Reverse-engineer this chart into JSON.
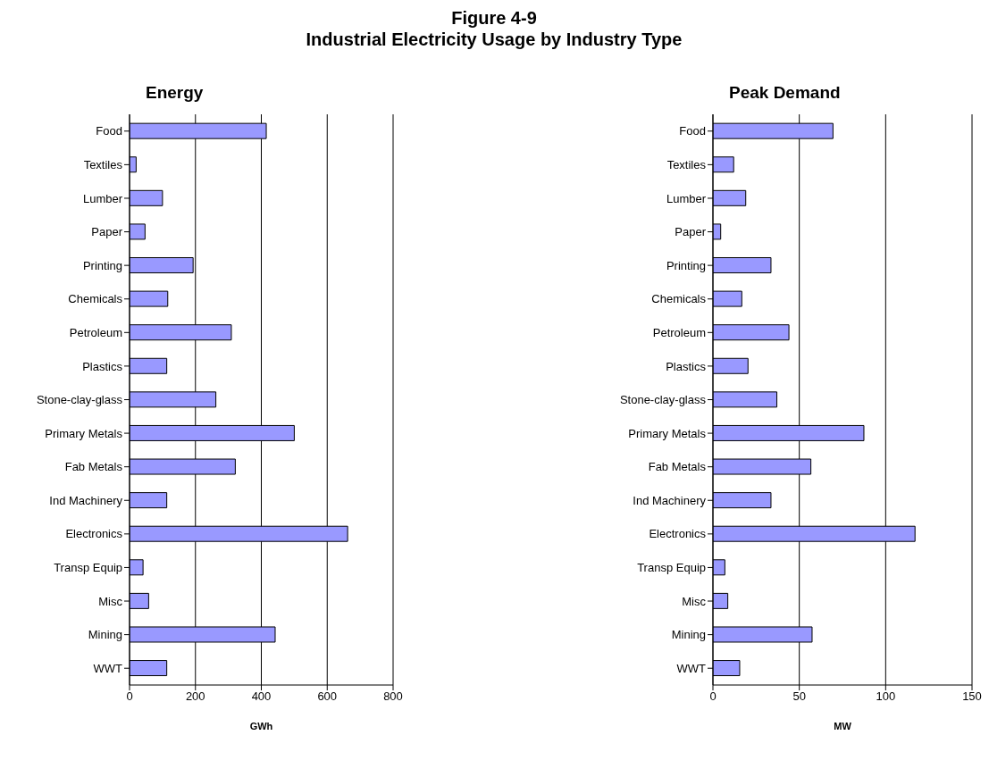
{
  "chart_data": [
    {
      "type": "bar",
      "orientation": "horizontal",
      "title": "Energy",
      "xlabel": "GWh",
      "annotations": [
        "Figure 4-9",
        "Industrial Electricity Usage by Industry Type"
      ],
      "categories": [
        "Food",
        "Textiles",
        "Lumber",
        "Paper",
        "Printing",
        "Chemicals",
        "Petroleum",
        "Plastics",
        "Stone-clay-glass",
        "Primary Metals",
        "Fab Metals",
        "Ind Machinery",
        "Electronics",
        "Transp Equip",
        "Misc",
        "Mining",
        "WWT"
      ],
      "values": [
        415,
        20,
        100,
        47,
        193,
        116,
        309,
        113,
        262,
        500,
        321,
        113,
        662,
        41,
        58,
        442,
        113
      ],
      "color": "#9999ff",
      "xlim": [
        0,
        800
      ],
      "xticks": [
        0,
        200,
        400,
        600,
        800
      ],
      "grid": "x"
    },
    {
      "type": "bar",
      "orientation": "horizontal",
      "title": "Peak Demand",
      "xlabel": "MW",
      "categories": [
        "Food",
        "Textiles",
        "Lumber",
        "Paper",
        "Printing",
        "Chemicals",
        "Petroleum",
        "Plastics",
        "Stone-clay-glass",
        "Primary Metals",
        "Fab Metals",
        "Ind Machinery",
        "Electronics",
        "Transp Equip",
        "Misc",
        "Mining",
        "WWT"
      ],
      "values": [
        69.5,
        12,
        19,
        4.5,
        33.6,
        16.7,
        44,
        20.3,
        37,
        87.4,
        56.7,
        33.6,
        117,
        6.9,
        8.6,
        57.4,
        15.5
      ],
      "color": "#9999ff",
      "xlim": [
        0,
        150
      ],
      "xticks": [
        0,
        50,
        100,
        150
      ],
      "grid": "x"
    }
  ]
}
